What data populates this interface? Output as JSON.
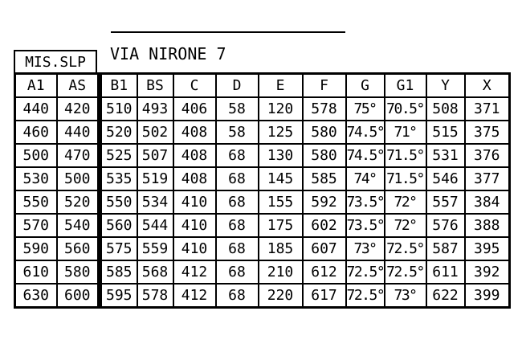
{
  "page": {
    "background_color": "#ffffff",
    "line_color": "#000000",
    "text_color": "#000000"
  },
  "title": {
    "text": "VIA NIRONE 7"
  },
  "corner_label": {
    "text": "MIS.SLP"
  },
  "geometry_table": {
    "headers": [
      "A1",
      "AS",
      "B1",
      "BS",
      "C",
      "D",
      "E",
      "F",
      "G",
      "G1",
      "Y",
      "X"
    ],
    "left_column_count": 2,
    "degree_columns": [
      8,
      9
    ],
    "rows": [
      [
        "440",
        "420",
        "510",
        "493",
        "406",
        "58",
        "120",
        "578",
        "75°",
        "70.5°",
        "508",
        "371"
      ],
      [
        "460",
        "440",
        "520",
        "502",
        "408",
        "58",
        "125",
        "580",
        "74.5°",
        "71°",
        "515",
        "375"
      ],
      [
        "500",
        "470",
        "525",
        "507",
        "408",
        "68",
        "130",
        "580",
        "74.5°",
        "71.5°",
        "531",
        "376"
      ],
      [
        "530",
        "500",
        "535",
        "519",
        "408",
        "68",
        "145",
        "585",
        "74°",
        "71.5°",
        "546",
        "377"
      ],
      [
        "550",
        "520",
        "550",
        "534",
        "410",
        "68",
        "155",
        "592",
        "73.5°",
        "72°",
        "557",
        "384"
      ],
      [
        "570",
        "540",
        "560",
        "544",
        "410",
        "68",
        "175",
        "602",
        "73.5°",
        "72°",
        "576",
        "388"
      ],
      [
        "590",
        "560",
        "575",
        "559",
        "410",
        "68",
        "185",
        "607",
        "73°",
        "72.5°",
        "587",
        "395"
      ],
      [
        "610",
        "580",
        "585",
        "568",
        "412",
        "68",
        "210",
        "612",
        "72.5°",
        "72.5°",
        "611",
        "392"
      ],
      [
        "630",
        "600",
        "595",
        "578",
        "412",
        "68",
        "220",
        "617",
        "72.5°",
        "73°",
        "622",
        "399"
      ]
    ]
  }
}
